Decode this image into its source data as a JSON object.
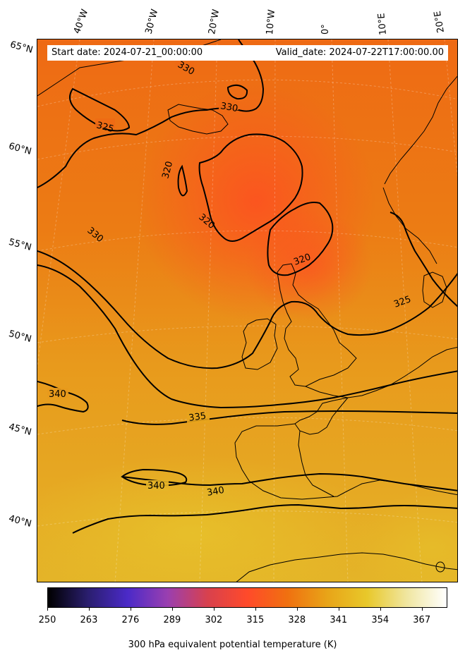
{
  "header": {
    "start_date": "Start date: 2024-07-21_00:00:00",
    "valid_date": "Valid_date: 2024-07-22T17:00:00.00"
  },
  "longitude_labels": [
    "40°W",
    "30°W",
    "20°W",
    "10°W",
    "0°",
    "10°E",
    "20°E"
  ],
  "latitude_labels": [
    "65°N",
    "60°N",
    "55°N",
    "50°N",
    "45°N",
    "40°N"
  ],
  "contour_labels": [
    "330",
    "330",
    "325",
    "320",
    "320",
    "330",
    "320",
    "325",
    "340",
    "335",
    "340",
    "340"
  ],
  "colorbar": {
    "ticks": [
      "250",
      "263",
      "276",
      "289",
      "302",
      "315",
      "328",
      "341",
      "354",
      "367"
    ],
    "label": "300 hPa equivalent potential temperature (K)",
    "colors": [
      "#000000",
      "#2a1e6e",
      "#4b2ac8",
      "#9a3fb0",
      "#d8414e",
      "#ff4a2a",
      "#f07010",
      "#e8a418",
      "#e8c82a",
      "#f0e6a0",
      "#ffffff"
    ]
  },
  "colors": {
    "cold_core": "#ff4f24",
    "mid_orange": "#ec7414",
    "warm": "#e6b02a",
    "contour": "#000000"
  }
}
